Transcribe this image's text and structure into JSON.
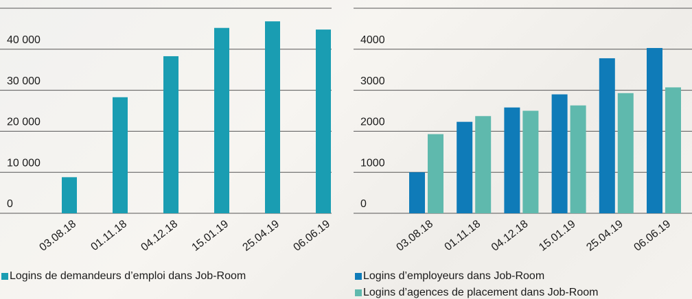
{
  "chart_data": [
    {
      "type": "bar",
      "categories": [
        "03.08.18",
        "01.11.18",
        "04.12.18",
        "15.01.19",
        "25.04.19",
        "06.06.19"
      ],
      "series": [
        {
          "name": "Logins de demandeurs d’emploi dans Job-Room",
          "color": "#1a9db2",
          "values": [
            8800,
            28300,
            38300,
            45200,
            46800,
            44800
          ]
        }
      ],
      "ylim": [
        0,
        50000
      ],
      "yticks": [
        0,
        {
          "value": 10000,
          "label": "10 000"
        },
        {
          "value": 20000,
          "label": "20 000"
        },
        {
          "value": 30000,
          "label": "30 000"
        },
        {
          "value": 40000,
          "label": "40 000"
        }
      ],
      "grid": true
    },
    {
      "type": "bar",
      "categories": [
        "03.08.18",
        "01.11.18",
        "04.12.18",
        "15.01.19",
        "25.04.19",
        "06.06.19"
      ],
      "series": [
        {
          "name": "Logins d’employeurs dans Job-Room",
          "color": "#0f7bb8",
          "values": [
            1000,
            2230,
            2580,
            2900,
            3780,
            4030
          ]
        },
        {
          "name": "Logins d’agences de placement dans Job-Room",
          "color": "#5fb9ad",
          "values": [
            1930,
            2370,
            2500,
            2630,
            2930,
            3070
          ]
        }
      ],
      "ylim": [
        0,
        5000
      ],
      "yticks": [
        0,
        1000,
        2000,
        3000,
        4000
      ],
      "grid": true
    }
  ]
}
